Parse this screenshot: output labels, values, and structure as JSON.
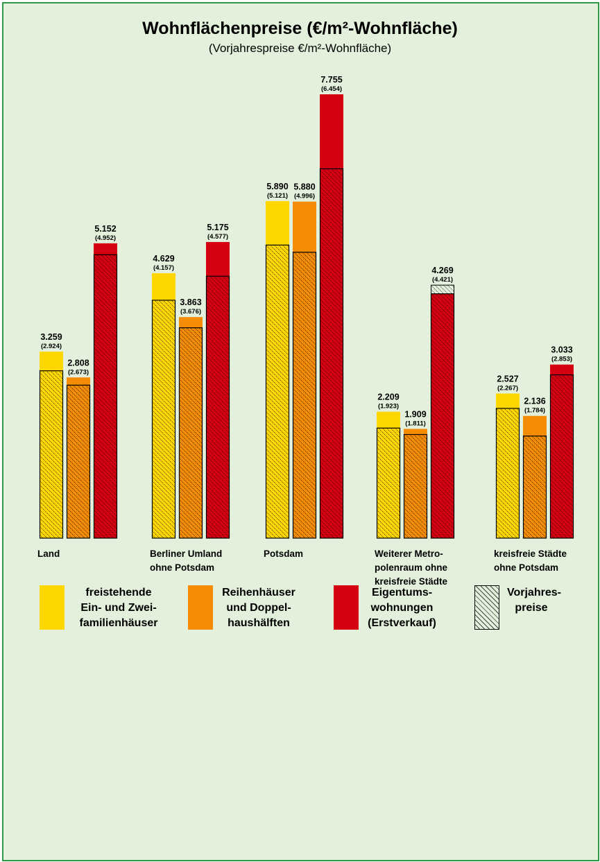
{
  "title": "Wohnflächenpreise (€/m²-Wohnfläche)",
  "subtitle": "(Vorjahrespreise €/m²-Wohnfläche)",
  "colors": {
    "freistehend": "#ffd700",
    "reihen": "#f48c06",
    "eigentum": "#d50012",
    "background": "#e3f0db",
    "frame": "#2e9a45"
  },
  "legend": [
    {
      "key": "freistehend",
      "label": "freistehende\nEin- und Zwei-\nfamilienhäuser"
    },
    {
      "key": "reihen",
      "label": "Reihenhäuser\nund Doppel-\nhaushälften"
    },
    {
      "key": "eigentum",
      "label": "Eigentums-\nwohnungen\n(Erstverkauf)"
    },
    {
      "key": "vorjahr",
      "label": "Vorjahres-\npreise"
    }
  ],
  "chart_data": {
    "type": "bar",
    "title": "Wohnflächenpreise (€/m²-Wohnfläche)",
    "subtitle": "(Vorjahrespreise €/m²-Wohnfläche)",
    "categories": [
      "Land",
      "Berliner Umland\nohne Potsdam",
      "Potsdam",
      "Weiterer Metro-\npolenraum ohne\nkreisfreie Städte",
      "kreisfreie Städte\nohne Potsdam"
    ],
    "series": [
      {
        "name": "freistehende Ein- und Zweifamilienhäuser",
        "key": "freistehend",
        "values": [
          3259,
          4629,
          5890,
          2209,
          2527
        ],
        "previous": [
          2924,
          4157,
          5121,
          1923,
          2267
        ],
        "labels": [
          "3.259",
          "4.629",
          "5.890",
          "2.209",
          "2.527"
        ],
        "previous_labels": [
          "(2.924)",
          "(4.157)",
          "(5.121)",
          "(1.923)",
          "(2.267)"
        ]
      },
      {
        "name": "Reihenhäuser und Doppelhaushälften",
        "key": "reihen",
        "values": [
          2808,
          3863,
          5880,
          1909,
          2136
        ],
        "previous": [
          2673,
          3676,
          4996,
          1811,
          1784
        ],
        "labels": [
          "2.808",
          "3.863",
          "5.880",
          "1.909",
          "2.136"
        ],
        "previous_labels": [
          "(2.673)",
          "(3.676)",
          "(4.996)",
          "(1.811)",
          "(1.784)"
        ]
      },
      {
        "name": "Eigentumswohnungen (Erstverkauf)",
        "key": "eigentum",
        "values": [
          5152,
          5175,
          7755,
          4269,
          3033
        ],
        "previous": [
          4952,
          4577,
          6454,
          4421,
          2853
        ],
        "labels": [
          "5.152",
          "5.175",
          "7.755",
          "4.269",
          "3.033"
        ],
        "previous_labels": [
          "(4.952)",
          "(4.577)",
          "(6.454)",
          "(4.421)",
          "(2.853)"
        ]
      }
    ],
    "ylim": [
      0,
      7755
    ],
    "grid": false,
    "legend_position": "bottom"
  }
}
